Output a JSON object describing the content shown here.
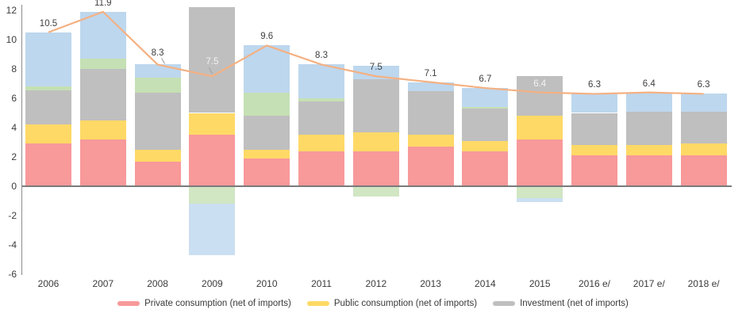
{
  "chart_data": {
    "type": "bar",
    "subtype": "stacked-bar-with-total-line",
    "title": "",
    "xlabel": "",
    "ylabel": "",
    "categories": [
      "2006",
      "2007",
      "2008",
      "2009",
      "2010",
      "2011",
      "2012",
      "2013",
      "2014",
      "2015",
      "2016 e/",
      "2017 e/",
      "2018 e/"
    ],
    "series": [
      {
        "name": "Private consumption (net of imports)",
        "color": "#F8999A",
        "values": [
          2.9,
          3.2,
          1.7,
          3.5,
          1.9,
          2.4,
          2.4,
          2.7,
          2.4,
          3.2,
          2.1,
          2.1,
          2.1
        ]
      },
      {
        "name": "Public consumption (net of imports)",
        "color": "#FFD966",
        "values": [
          1.3,
          1.3,
          0.8,
          1.5,
          0.6,
          1.1,
          1.3,
          0.8,
          0.7,
          1.6,
          0.7,
          0.7,
          0.8
        ]
      },
      {
        "name": "Investment (net of imports)",
        "color": "#BFBFBF",
        "values": [
          2.35,
          3.5,
          3.9,
          7.2,
          2.3,
          2.3,
          3.6,
          3.0,
          2.2,
          2.7,
          2.2,
          2.3,
          2.2
        ]
      },
      {
        "name": "unlabeled-green-segment",
        "color": "#C5E0B4",
        "values": [
          0.25,
          0.7,
          1.0,
          -1.2,
          1.6,
          0.2,
          -0.7,
          0,
          0.1,
          -0.8,
          0,
          0,
          0
        ]
      },
      {
        "name": "unlabeled-blue-segment",
        "color": "#BDD7EE",
        "values": [
          3.7,
          3.2,
          0.9,
          -3.5,
          3.2,
          2.3,
          0.9,
          0.6,
          1.3,
          -0.3,
          1.3,
          1.3,
          1.2
        ]
      }
    ],
    "line": {
      "name": "total-growth-line",
      "color": "#F4B183",
      "values": [
        10.5,
        11.9,
        8.3,
        7.5,
        9.6,
        8.3,
        7.5,
        7.1,
        6.7,
        6.4,
        6.3,
        6.4,
        6.3
      ],
      "labels": [
        "10.5",
        "11.9",
        "8.3",
        "7.5",
        "9.6",
        "8.3",
        "7.5",
        "7.1",
        "6.7",
        "6.4",
        "6.3",
        "6.4",
        "6.3"
      ]
    },
    "y_axis": {
      "min": -6,
      "max": 12,
      "step": 2,
      "ticks": [
        12,
        10,
        8,
        6,
        4,
        2,
        0,
        -2,
        -4,
        -6
      ]
    },
    "grid": "off",
    "legend_position": "bottom"
  },
  "legend": {
    "items": [
      {
        "label": "Private consumption (net of imports)",
        "color": "#F8999A"
      },
      {
        "label": "Public consumption (net of imports)",
        "color": "#FFD966"
      },
      {
        "label": "Investment (net of imports)",
        "color": "#BFBFBF"
      }
    ]
  },
  "colors": {
    "line": "#F4B183",
    "axis_text": "#3C3C3C",
    "zero_line": "#7A7A7A",
    "leader_line": "#A6A6A6",
    "white_label": "#F2F2F2"
  }
}
